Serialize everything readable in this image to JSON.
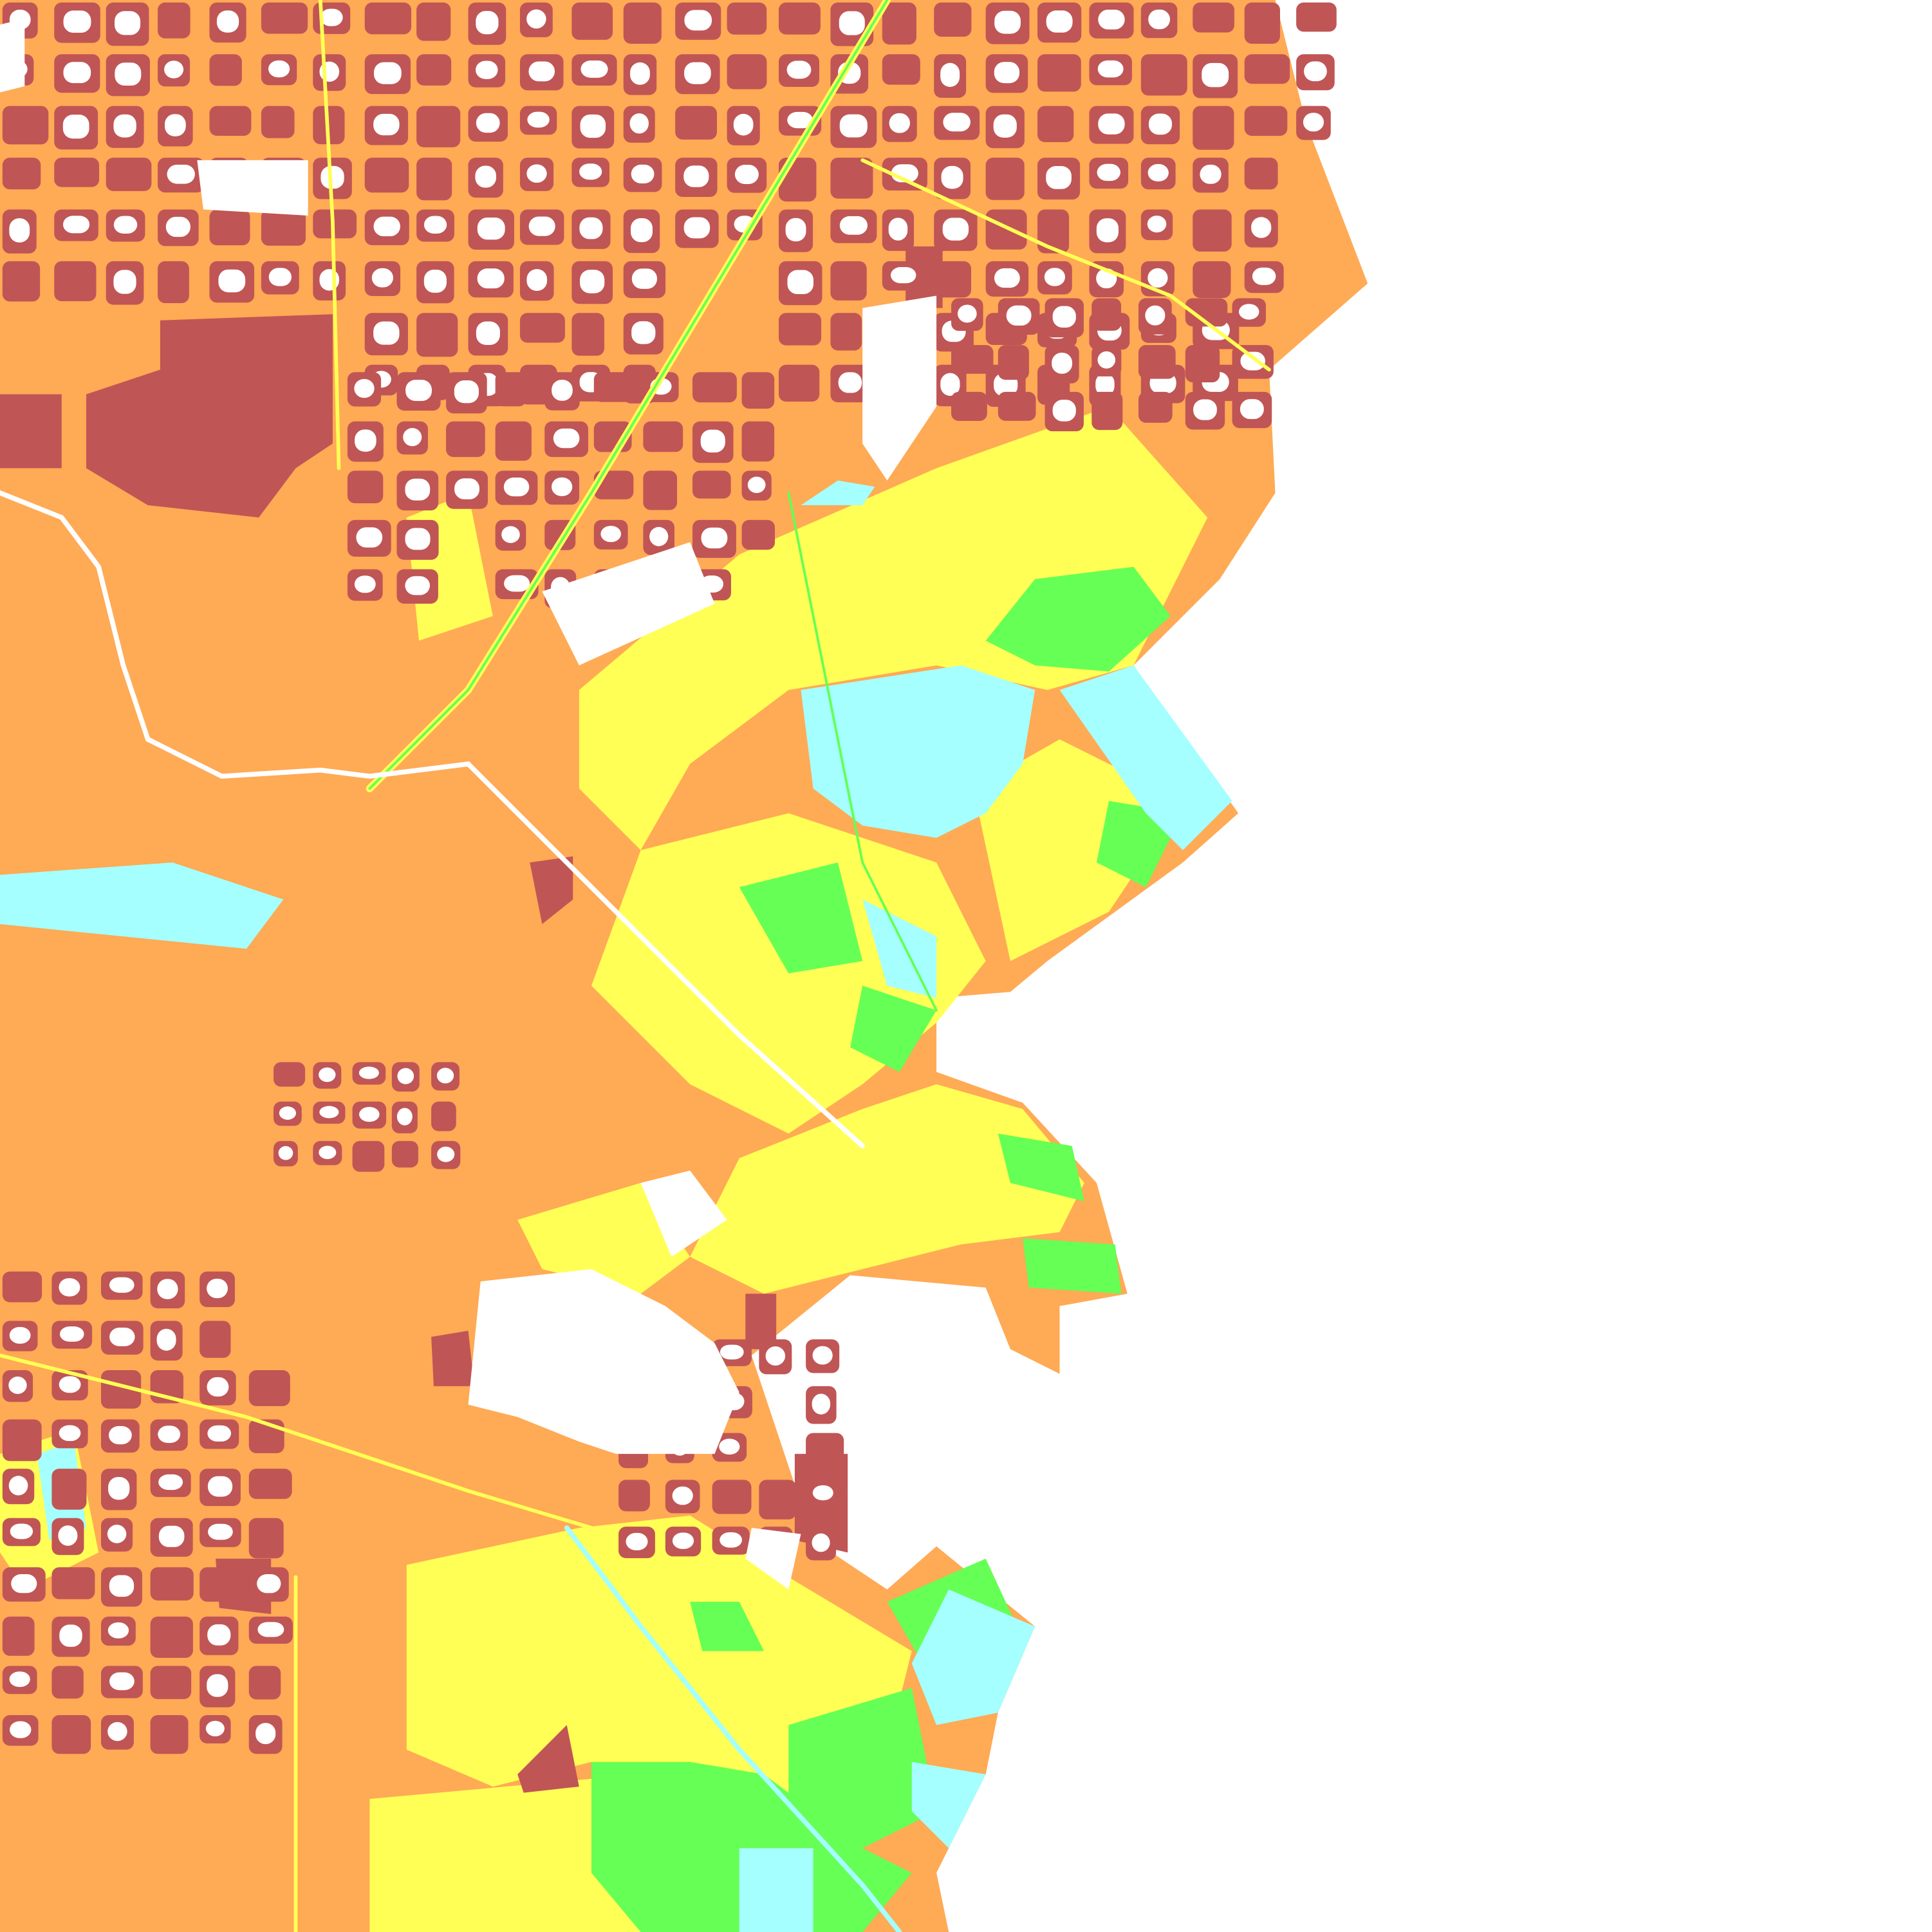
{
  "map": {
    "type": "classified land-cover raster",
    "legend_visible": false,
    "palette": {
      "background": "#ffffff",
      "class_dark_red": "#c05555",
      "class_orange": "#ffaa55",
      "class_yellow": "#ffff55",
      "class_green": "#66ff55",
      "class_cyan": "#a5ffff",
      "class_white": "#ffffff"
    }
  }
}
